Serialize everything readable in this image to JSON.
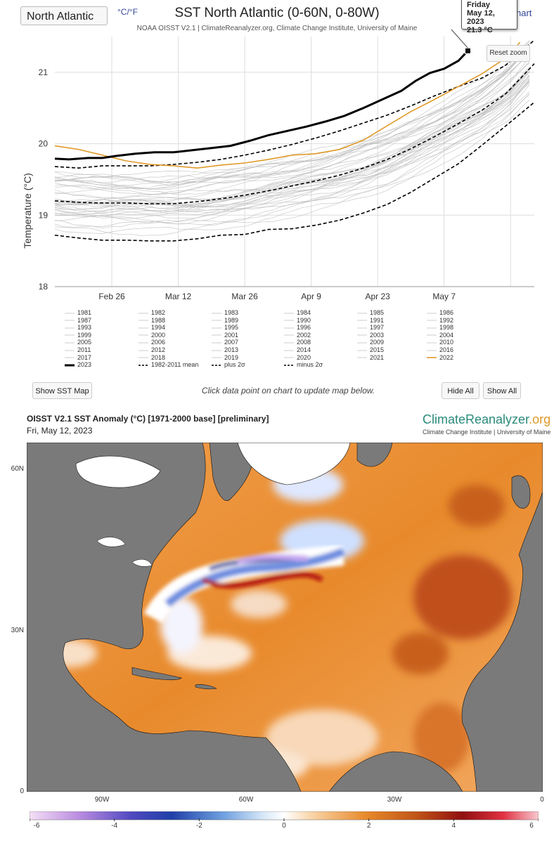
{
  "header": {
    "region": "North Atlantic",
    "unit_toggle": "°C/°F",
    "title": "SST North Atlantic (0-60N, 0-80W)",
    "subtitle": "NOAA OISST V2.1 | ClimateReanalyzer.org, Climate Change Institute, University of Maine",
    "link_fragment": "hart"
  },
  "tooltip": {
    "day": "Friday",
    "date": "May 12, 2023",
    "value": "21.3 °C"
  },
  "controls": {
    "reset_zoom": "Reset zoom",
    "show_sst_map": "Show SST Map",
    "hint": "Click data point on chart to update map below.",
    "hide_all": "Hide All",
    "show_all": "Show All"
  },
  "legend": {
    "columns": [
      [
        "1981",
        "1987",
        "1993",
        "1999",
        "2005",
        "2011",
        "2017",
        "2023"
      ],
      [
        "1982",
        "1988",
        "1994",
        "2000",
        "2006",
        "2012",
        "2018",
        "1982-2011 mean"
      ],
      [
        "1983",
        "1989",
        "1995",
        "2001",
        "2007",
        "2013",
        "2019",
        "plus 2σ"
      ],
      [
        "1984",
        "1990",
        "1996",
        "2002",
        "2008",
        "2014",
        "2020",
        "minus 2σ"
      ],
      [
        "1985",
        "1991",
        "1997",
        "2003",
        "2009",
        "2015",
        "2021"
      ],
      [
        "1986",
        "1992",
        "1998",
        "2004",
        "2010",
        "2016",
        "2022"
      ]
    ]
  },
  "chart_data": {
    "type": "line",
    "title": "SST North Atlantic (0-60N, 0-80W)",
    "subtitle": "NOAA OISST V2.1 | ClimateReanalyzer.org, Climate Change Institute, University of Maine",
    "ylabel": "Temperature (°C)",
    "xlabel": "",
    "ylim": [
      18,
      21.5
    ],
    "yticks": [
      18,
      19,
      20,
      21
    ],
    "xticks": [
      {
        "label": "Feb 26",
        "day": 57
      },
      {
        "label": "Mar 12",
        "day": 71
      },
      {
        "label": "Mar 26",
        "day": 85
      },
      {
        "label": "Apr 9",
        "day": 99
      },
      {
        "label": "Apr 23",
        "day": 113
      },
      {
        "label": "May 7",
        "day": 127
      }
    ],
    "xrange_day": [
      45,
      146
    ],
    "grid": true,
    "series": [
      {
        "name": "2023",
        "color": "#000000",
        "style": "solid-bold",
        "end_day": 132,
        "points": [
          [
            45,
            19.79
          ],
          [
            48,
            19.78
          ],
          [
            52,
            19.8
          ],
          [
            55,
            19.8
          ],
          [
            58,
            19.83
          ],
          [
            62,
            19.86
          ],
          [
            66,
            19.88
          ],
          [
            70,
            19.88
          ],
          [
            74,
            19.91
          ],
          [
            78,
            19.94
          ],
          [
            82,
            19.97
          ],
          [
            86,
            20.04
          ],
          [
            90,
            20.12
          ],
          [
            94,
            20.18
          ],
          [
            98,
            20.24
          ],
          [
            102,
            20.31
          ],
          [
            106,
            20.39
          ],
          [
            110,
            20.5
          ],
          [
            114,
            20.62
          ],
          [
            118,
            20.74
          ],
          [
            121,
            20.88
          ],
          [
            124,
            20.99
          ],
          [
            127,
            21.05
          ],
          [
            130,
            21.16
          ],
          [
            132,
            21.3
          ]
        ]
      },
      {
        "name": "2022",
        "color": "#e09a2a",
        "style": "solid",
        "points": [
          [
            45,
            19.97
          ],
          [
            50,
            19.92
          ],
          [
            55,
            19.84
          ],
          [
            60,
            19.76
          ],
          [
            65,
            19.71
          ],
          [
            70,
            19.69
          ],
          [
            75,
            19.66
          ],
          [
            80,
            19.7
          ],
          [
            85,
            19.73
          ],
          [
            90,
            19.78
          ],
          [
            95,
            19.84
          ],
          [
            100,
            19.86
          ],
          [
            105,
            19.92
          ],
          [
            110,
            20.05
          ],
          [
            115,
            20.25
          ],
          [
            120,
            20.45
          ],
          [
            125,
            20.62
          ],
          [
            130,
            20.8
          ],
          [
            135,
            20.98
          ],
          [
            140,
            21.2
          ],
          [
            143,
            21.42
          ]
        ]
      },
      {
        "name": "1982-2011 mean",
        "color": "#000000",
        "style": "dashed",
        "points": [
          [
            45,
            19.2
          ],
          [
            50,
            19.18
          ],
          [
            55,
            19.17
          ],
          [
            60,
            19.17
          ],
          [
            65,
            19.16
          ],
          [
            70,
            19.16
          ],
          [
            75,
            19.19
          ],
          [
            80,
            19.23
          ],
          [
            85,
            19.28
          ],
          [
            90,
            19.34
          ],
          [
            95,
            19.41
          ],
          [
            100,
            19.48
          ],
          [
            105,
            19.56
          ],
          [
            110,
            19.66
          ],
          [
            115,
            19.78
          ],
          [
            120,
            19.93
          ],
          [
            125,
            20.1
          ],
          [
            130,
            20.28
          ],
          [
            135,
            20.47
          ],
          [
            140,
            20.7
          ],
          [
            146,
            21.12
          ]
        ]
      },
      {
        "name": "plus 2σ",
        "color": "#000000",
        "style": "dashed",
        "points": [
          [
            45,
            19.68
          ],
          [
            50,
            19.66
          ],
          [
            55,
            19.69
          ],
          [
            60,
            19.69
          ],
          [
            65,
            19.69
          ],
          [
            70,
            19.71
          ],
          [
            75,
            19.74
          ],
          [
            80,
            19.78
          ],
          [
            85,
            19.84
          ],
          [
            90,
            19.91
          ],
          [
            95,
            19.99
          ],
          [
            100,
            20.08
          ],
          [
            105,
            20.18
          ],
          [
            110,
            20.29
          ],
          [
            115,
            20.4
          ],
          [
            120,
            20.53
          ],
          [
            125,
            20.67
          ],
          [
            130,
            20.8
          ],
          [
            135,
            20.92
          ],
          [
            140,
            21.1
          ],
          [
            146,
            21.45
          ]
        ]
      },
      {
        "name": "minus 2σ",
        "color": "#000000",
        "style": "dashed",
        "points": [
          [
            45,
            18.72
          ],
          [
            50,
            18.68
          ],
          [
            55,
            18.65
          ],
          [
            60,
            18.65
          ],
          [
            65,
            18.64
          ],
          [
            70,
            18.64
          ],
          [
            75,
            18.67
          ],
          [
            80,
            18.72
          ],
          [
            85,
            18.73
          ],
          [
            90,
            18.8
          ],
          [
            95,
            18.81
          ],
          [
            100,
            18.86
          ],
          [
            105,
            18.93
          ],
          [
            110,
            19.03
          ],
          [
            115,
            19.15
          ],
          [
            120,
            19.32
          ],
          [
            125,
            19.52
          ],
          [
            130,
            19.72
          ],
          [
            135,
            19.98
          ],
          [
            140,
            20.25
          ],
          [
            146,
            20.58
          ]
        ]
      }
    ]
  },
  "map": {
    "title": "OISST V2.1 SST Anomaly (°C) [1971-2000 base] [preliminary]",
    "date": "Fri, May 12, 2023",
    "brand_main": "ClimateReanalyzer",
    "brand_tld": ".org",
    "brand_sub": "Climate Change Institute | University of Maine",
    "lat_labels": [
      "60N",
      "30N",
      "0"
    ],
    "lon_labels": [
      "90W",
      "60W",
      "30W",
      "0"
    ],
    "colorbar": {
      "min": -6,
      "max": 6,
      "tick_labels": [
        "-6",
        "-4",
        "-2",
        "0",
        "2",
        "4",
        "6"
      ]
    },
    "colors": {
      "warm": "#e07a1a",
      "hot": "#a02010",
      "cold": "#3050c0",
      "land": "#7a7a7a",
      "ice": "#ffffff"
    }
  }
}
